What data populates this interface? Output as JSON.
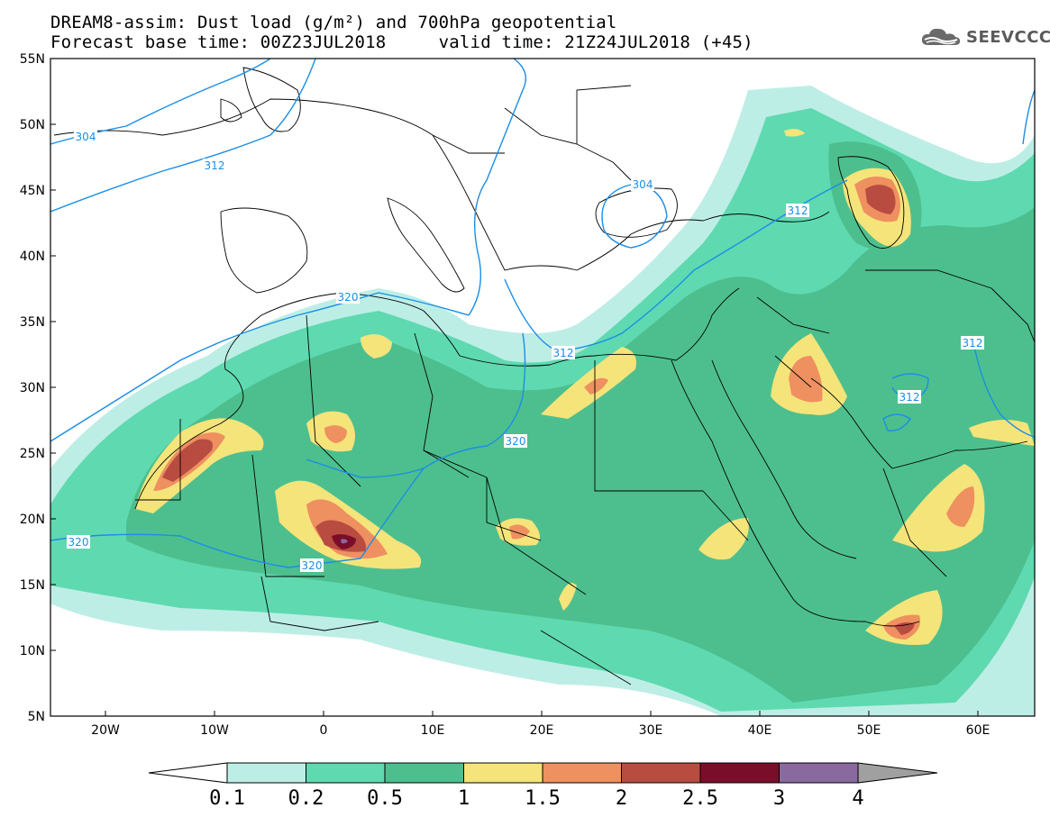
{
  "header": {
    "title_line1": "DREAM8-assim: Dust load (g/m²) and 700hPa geopotential",
    "title_line2": "Forecast base time: 00Z23JUL2018     valid time: 21Z24JUL2018 (+45)"
  },
  "logo": {
    "text": "SEEVCCC",
    "icon": "cloud-icon"
  },
  "map": {
    "lat_labels": [
      "55N",
      "50N",
      "45N",
      "40N",
      "35N",
      "30N",
      "25N",
      "20N",
      "15N",
      "10N",
      "5N"
    ],
    "lon_labels": [
      "20W",
      "10W",
      "0",
      "10E",
      "20E",
      "30E",
      "40E",
      "50E",
      "60E"
    ],
    "contour_labels": [
      "304",
      "312",
      "304",
      "312",
      "320",
      "312",
      "320",
      "312",
      "312",
      "320",
      "320"
    ],
    "colors": {
      "dust_0_1": "#bdeee6",
      "dust_0_2": "#5fd9b0",
      "dust_0_5": "#4dbf8e",
      "dust_1": "#f5e47a",
      "dust_1_5": "#ee9060",
      "dust_2": "#b84c40",
      "dust_2_5": "#7a0e2a",
      "dust_3": "#8a6a9e",
      "contour": "#1a8ee6"
    }
  },
  "colorbar": {
    "labels": [
      "0.1",
      "0.2",
      "0.5",
      "1",
      "1.5",
      "2",
      "2.5",
      "3",
      "4"
    ],
    "colors": [
      "#bdeee6",
      "#5fd9b0",
      "#4dbf8e",
      "#f5e47a",
      "#ee9060",
      "#b84c40",
      "#7a0e2a",
      "#8a6a9e"
    ],
    "under_color": "#ffffff",
    "over_color": "#a0a0a0"
  }
}
